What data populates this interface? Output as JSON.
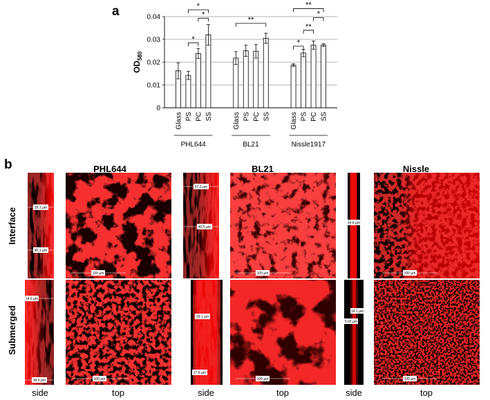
{
  "panel_a": {
    "letter": "a"
  },
  "panel_b": {
    "letter": "b"
  },
  "chart_data": {
    "type": "bar",
    "ylabel_main": "OD",
    "ylabel_sub": "580",
    "xlabel": "",
    "ylim": [
      0,
      0.04
    ],
    "yticks": [
      "0",
      "0.01",
      "0.02",
      "0.03",
      "0.04"
    ],
    "yticks_values": [
      0,
      0.01,
      0.02,
      0.03,
      0.04
    ],
    "grid": true,
    "groups": [
      {
        "name": "PHL644",
        "categories": [
          "Glass",
          "PS",
          "PC",
          "SS"
        ],
        "values": [
          0.0162,
          0.0142,
          0.0238,
          0.032
        ],
        "errors": [
          0.0035,
          0.0018,
          0.0022,
          0.0045
        ]
      },
      {
        "name": "BL21",
        "categories": [
          "Glass",
          "PS",
          "PC",
          "SS"
        ],
        "values": [
          0.0218,
          0.025,
          0.0248,
          0.0305
        ],
        "errors": [
          0.0028,
          0.0025,
          0.003,
          0.0022
        ]
      },
      {
        "name": "Nissle1917",
        "categories": [
          "Glass",
          "PS",
          "PC",
          "SS"
        ],
        "values": [
          0.0187,
          0.024,
          0.0275,
          0.0275
        ],
        "errors": [
          0.0006,
          0.0016,
          0.0018,
          0.0006
        ]
      }
    ],
    "significance": [
      {
        "label": "*",
        "group": 0,
        "from": 1,
        "to": 2,
        "level": 0.0285
      },
      {
        "label": "*",
        "group": 0,
        "from": 2,
        "to": 3,
        "level": 0.0393
      },
      {
        "label": "*",
        "group": 0,
        "from": 1,
        "to": 3,
        "level": 0.043
      },
      {
        "label": "**",
        "group": 1,
        "from": 0,
        "to": 3,
        "level": 0.037
      },
      {
        "label": "*",
        "group": 2,
        "from": 0,
        "to": 1,
        "level": 0.027
      },
      {
        "label": "**",
        "group": 2,
        "from": 1,
        "to": 2,
        "level": 0.034
      },
      {
        "label": "*",
        "group": 2,
        "from": 2,
        "to": 3,
        "level": 0.0395
      },
      {
        "label": "**",
        "group": 2,
        "from": 0,
        "to": 3,
        "level": 0.0435
      }
    ]
  },
  "micrographs": {
    "strains": [
      "PHL644",
      "BL21",
      "Nissle"
    ],
    "rows": [
      "Interface",
      "Submerged"
    ],
    "views": {
      "side": "side",
      "top": "top"
    },
    "scale_labels": {
      "phl_int_side": [
        "35.1 µm",
        "40.1 µm"
      ],
      "phl_int_top": "100 µm",
      "bl_int_side": [
        "57.3 µm",
        "40.5 µm"
      ],
      "bl_int_top": "100 µm",
      "nis_int_side": [
        "14.6 µm"
      ],
      "nis_int_top": "100 µm",
      "phl_sub_side": [
        "14.6 µm",
        "39.6 µm"
      ],
      "phl_sub_top": "100 µm",
      "bl_sub_side": [
        "29.1 µm",
        "17.8 µm"
      ],
      "bl_sub_top": "100 µm",
      "nis_sub_side": [
        "5.02 µm",
        "14.1 µm"
      ],
      "nis_sub_top": "100 µm"
    }
  }
}
